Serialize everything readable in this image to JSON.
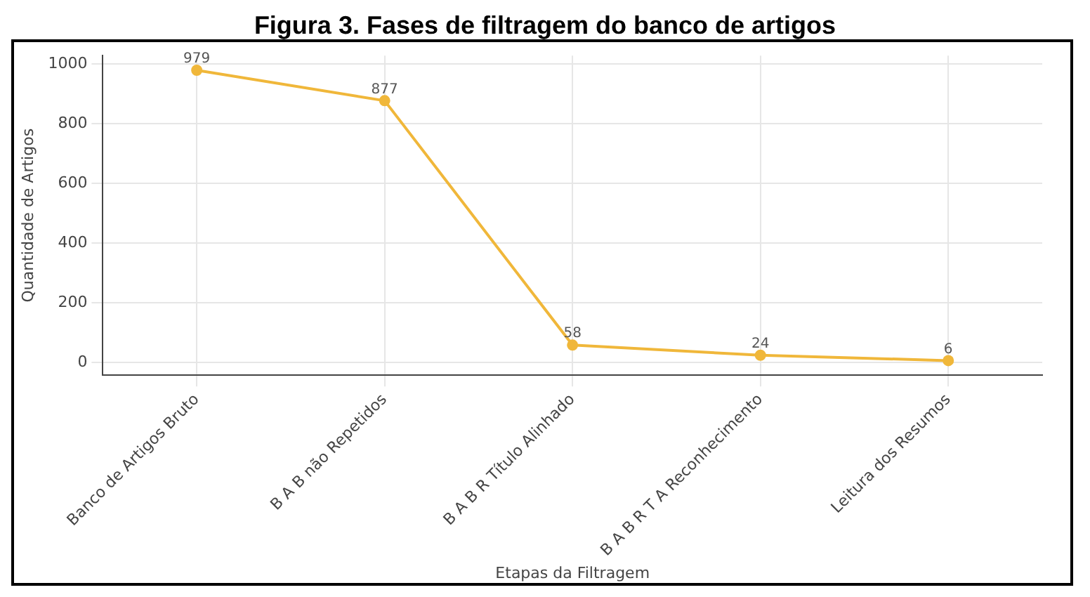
{
  "chart_data": {
    "type": "line",
    "title": "Figura 3. Fases de filtragem do banco de artigos",
    "xlabel": "Etapas da Filtragem",
    "ylabel": "Quantidade de Artigos",
    "categories": [
      "Banco de Artigos Bruto",
      "B A B não Repetidos",
      "B A B R Título Alinhado",
      "B A B R T A Reconhecimento",
      "Leitura dos Resumos"
    ],
    "series": [
      {
        "color": "#f0b73a",
        "values": [
          979,
          877,
          58,
          24,
          6
        ]
      }
    ],
    "ylim": [
      -43,
      1028
    ],
    "yticks": [
      0,
      200,
      400,
      600,
      800,
      1000
    ],
    "grid": true,
    "legend": false,
    "marker": "circle",
    "line_style": "solid",
    "data_labels": true
  }
}
